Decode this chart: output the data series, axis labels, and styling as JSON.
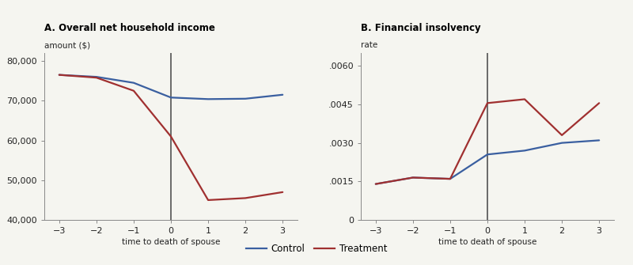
{
  "panel_a": {
    "title": "A. Overall net household income",
    "ylabel": "amount ($)",
    "xlabel": "time to death of spouse",
    "x": [
      -3,
      -2,
      -1,
      0,
      1,
      2,
      3
    ],
    "control": [
      76500,
      76000,
      74500,
      70800,
      70400,
      70500,
      71500
    ],
    "treatment": [
      76500,
      75800,
      72500,
      61000,
      45000,
      45500,
      47000
    ],
    "ylim": [
      40000,
      82000
    ],
    "yticks": [
      40000,
      50000,
      60000,
      70000,
      80000
    ],
    "ytick_labels": [
      "40,000",
      "50,000",
      "60,000",
      "70,000",
      "80,000"
    ]
  },
  "panel_b": {
    "title": "B. Financial insolvency",
    "ylabel": "rate",
    "xlabel": "time to death of spouse",
    "x": [
      -3,
      -2,
      -1,
      0,
      1,
      2,
      3
    ],
    "control": [
      0.0014,
      0.00165,
      0.0016,
      0.00255,
      0.0027,
      0.003,
      0.0031
    ],
    "treatment": [
      0.0014,
      0.00165,
      0.0016,
      0.00455,
      0.0047,
      0.0033,
      0.00455
    ],
    "ylim": [
      0,
      0.0065
    ],
    "yticks": [
      0,
      0.0015,
      0.003,
      0.0045,
      0.006
    ],
    "ytick_labels": [
      "0",
      ".0015",
      ".0030",
      ".0045",
      ".0060"
    ]
  },
  "control_color": "#3a5fa0",
  "treatment_color": "#a03030",
  "line_width": 1.6,
  "vline_color": "#444444",
  "legend_control": "Control",
  "legend_treatment": "Treatment",
  "bg_color": "#f5f5f0"
}
